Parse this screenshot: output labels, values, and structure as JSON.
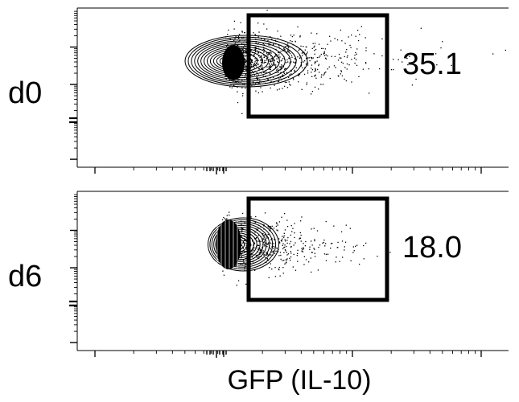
{
  "chart_data": {
    "type": "scatter",
    "subtype": "flow-cytometry-contour",
    "xlabel": "GFP (IL-10)",
    "ylabel": "",
    "x_scale": "log",
    "y_scale": "log",
    "panels": [
      {
        "label": "d0",
        "gate_percent": "35.1"
      },
      {
        "label": "d6",
        "gate_percent": "18.0"
      }
    ]
  }
}
